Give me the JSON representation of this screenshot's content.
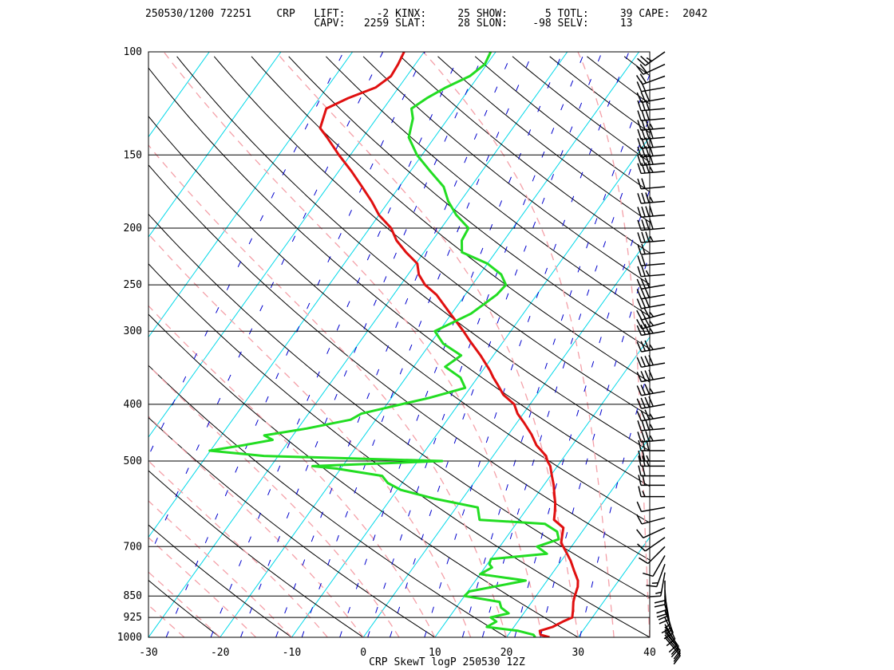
{
  "header": {
    "line1": "250530/1200 72251    CRP   LIFT:     -2 KINX:     25 SHOW:      5 TOTL:     39 CAPE:  2042",
    "line2": "                           CAPV:   2259 SLAT:     28 SLON:    -98 SELV:     13"
  },
  "chart_data": {
    "type": "line",
    "title": "CRP SkewT logP 250530 12Z",
    "station": "CRP",
    "station_id": "72251",
    "valid": "250530/1200",
    "indices": {
      "LIFT": -2,
      "KINX": 25,
      "SHOW": 5,
      "TOTL": 39,
      "CAPE": 2042,
      "CAPV": 2259,
      "SLAT": 28,
      "SLON": -98,
      "SELV": 13
    },
    "xlabel": "",
    "ylabel": "",
    "x_axis": {
      "range": [
        -30,
        40
      ],
      "ticks": [
        -30,
        -20,
        -10,
        0,
        10,
        20,
        30,
        40
      ]
    },
    "y_axis": {
      "scale": "log",
      "range": [
        1000,
        100
      ],
      "ticks": [
        100,
        150,
        200,
        250,
        300,
        400,
        500,
        700,
        850,
        925,
        1000
      ]
    },
    "colors": {
      "temperature": "#e01010",
      "dewpoint": "#22dd22",
      "dry_adiabat": "#000000",
      "moist_adiabat": "#f4a0a8",
      "isotherm": "#00d8e8",
      "mixing_ratio": "#0000cc",
      "isobar": "#000000",
      "wind_barb": "#000000"
    },
    "series": [
      {
        "key": "temperature",
        "points": [
          [
            1000,
            26.0
          ],
          [
            990,
            24.5
          ],
          [
            975,
            24.0
          ],
          [
            960,
            25.4
          ],
          [
            940,
            26.3
          ],
          [
            925,
            27.2
          ],
          [
            900,
            26.6
          ],
          [
            870,
            25.8
          ],
          [
            850,
            25.4
          ],
          [
            820,
            24.9
          ],
          [
            800,
            24.3
          ],
          [
            770,
            22.8
          ],
          [
            740,
            21.3
          ],
          [
            710,
            19.5
          ],
          [
            690,
            18.2
          ],
          [
            670,
            17.6
          ],
          [
            650,
            17.0
          ],
          [
            630,
            14.9
          ],
          [
            610,
            14.2
          ],
          [
            590,
            13.4
          ],
          [
            570,
            12.4
          ],
          [
            550,
            11.4
          ],
          [
            530,
            10.2
          ],
          [
            510,
            9.0
          ],
          [
            500,
            8.1
          ],
          [
            490,
            7.4
          ],
          [
            470,
            5.0
          ],
          [
            450,
            3.2
          ],
          [
            430,
            1.0
          ],
          [
            415,
            -0.8
          ],
          [
            400,
            -2.2
          ],
          [
            385,
            -4.7
          ],
          [
            370,
            -6.5
          ],
          [
            360,
            -7.8
          ],
          [
            350,
            -9.0
          ],
          [
            330,
            -11.8
          ],
          [
            310,
            -15.0
          ],
          [
            300,
            -16.6
          ],
          [
            280,
            -20.2
          ],
          [
            260,
            -24.0
          ],
          [
            250,
            -26.6
          ],
          [
            240,
            -28.5
          ],
          [
            230,
            -29.8
          ],
          [
            220,
            -32.5
          ],
          [
            210,
            -35.0
          ],
          [
            200,
            -37.0
          ],
          [
            190,
            -40.0
          ],
          [
            180,
            -42.4
          ],
          [
            170,
            -45.2
          ],
          [
            160,
            -48.2
          ],
          [
            150,
            -51.6
          ],
          [
            140,
            -55.0
          ],
          [
            135,
            -56.9
          ],
          [
            125,
            -58.0
          ],
          [
            120,
            -56.0
          ],
          [
            115,
            -53.2
          ],
          [
            110,
            -52.2
          ],
          [
            105,
            -52.4
          ],
          [
            100,
            -52.8
          ]
        ]
      },
      {
        "key": "dewpoint",
        "points": [
          [
            1000,
            24.0
          ],
          [
            990,
            23.5
          ],
          [
            975,
            21.0
          ],
          [
            960,
            16.2
          ],
          [
            940,
            17.0
          ],
          [
            925,
            15.8
          ],
          [
            910,
            17.9
          ],
          [
            890,
            16.3
          ],
          [
            870,
            15.5
          ],
          [
            850,
            10.0
          ],
          [
            835,
            10.2
          ],
          [
            800,
            17.0
          ],
          [
            780,
            10.0
          ],
          [
            760,
            11.0
          ],
          [
            750,
            10.3
          ],
          [
            735,
            10.0
          ],
          [
            720,
            17.3
          ],
          [
            700,
            15.2
          ],
          [
            680,
            17.5
          ],
          [
            660,
            16.5
          ],
          [
            640,
            14.0
          ],
          [
            630,
            4.5
          ],
          [
            600,
            3.0
          ],
          [
            580,
            -3.8
          ],
          [
            560,
            -9.5
          ],
          [
            545,
            -12.0
          ],
          [
            530,
            -13.5
          ],
          [
            515,
            -20.6
          ],
          [
            510,
            -24.2
          ],
          [
            500,
            -6.6
          ],
          [
            490,
            -32.0
          ],
          [
            480,
            -40.1
          ],
          [
            470,
            -36.0
          ],
          [
            460,
            -32.4
          ],
          [
            452,
            -34.0
          ],
          [
            440,
            -28.8
          ],
          [
            425,
            -23.5
          ],
          [
            415,
            -22.6
          ],
          [
            405,
            -19.6
          ],
          [
            390,
            -14.7
          ],
          [
            375,
            -10.7
          ],
          [
            360,
            -12.4
          ],
          [
            345,
            -15.6
          ],
          [
            330,
            -14.5
          ],
          [
            315,
            -18.2
          ],
          [
            300,
            -20.6
          ],
          [
            280,
            -17.3
          ],
          [
            260,
            -15.6
          ],
          [
            250,
            -15.3
          ],
          [
            240,
            -17.0
          ],
          [
            230,
            -20.0
          ],
          [
            220,
            -24.7
          ],
          [
            210,
            -25.9
          ],
          [
            200,
            -26.2
          ],
          [
            190,
            -29.2
          ],
          [
            180,
            -31.7
          ],
          [
            170,
            -33.8
          ],
          [
            160,
            -37.2
          ],
          [
            150,
            -40.7
          ],
          [
            140,
            -43.6
          ],
          [
            130,
            -44.9
          ],
          [
            125,
            -46.1
          ],
          [
            120,
            -45.0
          ],
          [
            115,
            -43.4
          ],
          [
            110,
            -41.2
          ],
          [
            105,
            -40.3
          ],
          [
            100,
            -40.7
          ]
        ]
      }
    ],
    "winds": [
      [
        1000,
        140,
        10
      ],
      [
        990,
        140,
        10
      ],
      [
        980,
        140,
        10
      ],
      [
        970,
        145,
        10
      ],
      [
        960,
        145,
        10
      ],
      [
        950,
        150,
        10
      ],
      [
        925,
        155,
        10
      ],
      [
        900,
        160,
        15
      ],
      [
        880,
        165,
        15
      ],
      [
        850,
        170,
        20
      ],
      [
        830,
        175,
        20
      ],
      [
        800,
        180,
        20
      ],
      [
        775,
        190,
        15
      ],
      [
        750,
        200,
        15
      ],
      [
        725,
        210,
        10
      ],
      [
        700,
        225,
        10
      ],
      [
        675,
        235,
        10
      ],
      [
        650,
        245,
        10
      ],
      [
        625,
        255,
        10
      ],
      [
        600,
        260,
        10
      ],
      [
        575,
        270,
        15
      ],
      [
        550,
        270,
        20
      ],
      [
        530,
        270,
        20
      ],
      [
        510,
        270,
        25
      ],
      [
        500,
        270,
        25
      ],
      [
        480,
        270,
        30
      ],
      [
        460,
        265,
        35
      ],
      [
        440,
        265,
        35
      ],
      [
        420,
        260,
        35
      ],
      [
        400,
        260,
        40
      ],
      [
        380,
        260,
        35
      ],
      [
        360,
        260,
        40
      ],
      [
        340,
        260,
        40
      ],
      [
        320,
        260,
        35
      ],
      [
        300,
        260,
        35
      ],
      [
        290,
        255,
        35
      ],
      [
        280,
        255,
        35
      ],
      [
        270,
        260,
        30
      ],
      [
        260,
        260,
        30
      ],
      [
        250,
        260,
        30
      ],
      [
        240,
        265,
        25
      ],
      [
        230,
        265,
        20
      ],
      [
        220,
        265,
        20
      ],
      [
        210,
        265,
        35
      ],
      [
        200,
        265,
        40
      ],
      [
        190,
        265,
        40
      ],
      [
        180,
        265,
        35
      ],
      [
        170,
        265,
        20
      ],
      [
        160,
        265,
        35
      ],
      [
        155,
        265,
        40
      ],
      [
        150,
        265,
        40
      ],
      [
        145,
        265,
        40
      ],
      [
        140,
        265,
        40
      ],
      [
        135,
        265,
        35
      ],
      [
        130,
        265,
        30
      ],
      [
        125,
        265,
        30
      ],
      [
        120,
        260,
        30
      ],
      [
        115,
        260,
        20
      ],
      [
        110,
        250,
        20
      ],
      [
        105,
        245,
        20
      ],
      [
        100,
        235,
        25
      ]
    ]
  }
}
